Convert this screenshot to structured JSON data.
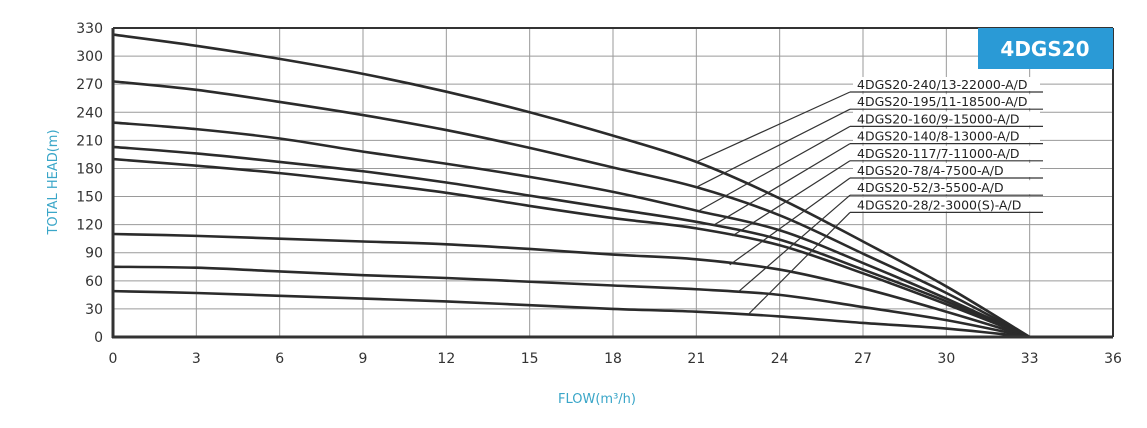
{
  "chart_data": {
    "type": "line",
    "title": "4DGS20",
    "xlabel": "FLOW(m³/h)",
    "ylabel": "TOTAL HEAD(m)",
    "xlim": [
      0,
      36
    ],
    "ylim": [
      0,
      330
    ],
    "grid": true,
    "x_ticks": [
      0,
      3,
      6,
      9,
      12,
      15,
      18,
      21,
      24,
      27,
      30,
      33,
      36
    ],
    "y_ticks": [
      0,
      30,
      60,
      90,
      120,
      150,
      180,
      210,
      240,
      270,
      300,
      330
    ],
    "x": [
      0,
      3,
      6,
      9,
      12,
      15,
      18,
      21,
      24,
      27,
      30,
      33
    ],
    "legend_placement": "top-right",
    "colors": {
      "curve": "#2b2b2b",
      "grid": "#9a9a9a",
      "badge": "#2a9ad6",
      "axis_title": "#3aa6c8"
    },
    "series": [
      {
        "name": "4DGS20-240/13-22000-A/D",
        "values": [
          323,
          311,
          297,
          281,
          262,
          240,
          215,
          187,
          148,
          102,
          54,
          0
        ],
        "leader_point": [
          21.0,
          187
        ]
      },
      {
        "name": "4DGS20-195/11-18500-A/D",
        "values": [
          273,
          264,
          251,
          237,
          221,
          202,
          181,
          160,
          130,
          89,
          47,
          0
        ],
        "leader_point": [
          21.0,
          160
        ]
      },
      {
        "name": "4DGS20-160/9-15000-A/D",
        "values": [
          229,
          222,
          212,
          198,
          185,
          171,
          155,
          135,
          114,
          79,
          41,
          0
        ],
        "leader_point": [
          21.1,
          135
        ]
      },
      {
        "name": "4DGS20-140/8-13000-A/D",
        "values": [
          203,
          196,
          187,
          177,
          165,
          151,
          137,
          123,
          104,
          72,
          38,
          0
        ],
        "leader_point": [
          21.6,
          119
        ]
      },
      {
        "name": "4DGS20-117/7-11000-A/D",
        "values": [
          190,
          183,
          175,
          165,
          154,
          140,
          127,
          116,
          98,
          68,
          35,
          0
        ],
        "leader_point": [
          22.3,
          108
        ]
      },
      {
        "name": "4DGS20-78/4-7500-A/D",
        "values": [
          110,
          108,
          105,
          102,
          99,
          94,
          88,
          83,
          72,
          52,
          27,
          0
        ],
        "leader_point": [
          22.2,
          77
        ]
      },
      {
        "name": "4DGS20-52/3-5500-A/D",
        "values": [
          75,
          74,
          70,
          66,
          63,
          59,
          55,
          51,
          45,
          32,
          18,
          0
        ],
        "leader_point": [
          22.5,
          48
        ]
      },
      {
        "name": "4DGS20-28/2-3000(S)-A/D",
        "values": [
          49,
          47,
          44,
          41,
          38,
          34,
          30,
          27,
          22,
          15,
          9,
          0
        ],
        "leader_point": [
          22.9,
          25
        ]
      }
    ]
  }
}
